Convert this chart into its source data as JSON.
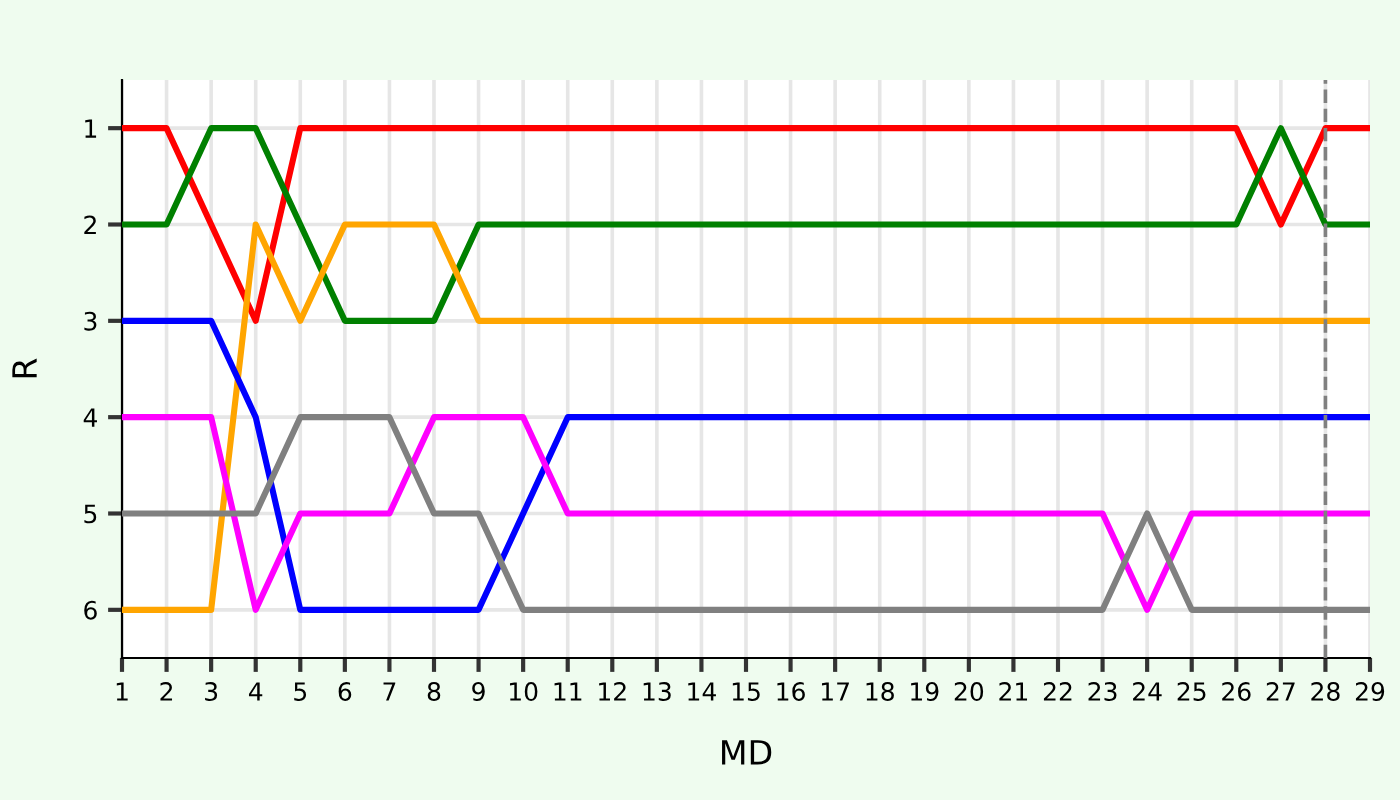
{
  "chart_data": {
    "type": "line",
    "xlabel": "MD",
    "ylabel": "R",
    "x": [
      1,
      2,
      3,
      4,
      5,
      6,
      7,
      8,
      9,
      10,
      11,
      12,
      13,
      14,
      15,
      16,
      17,
      18,
      19,
      20,
      21,
      22,
      23,
      24,
      25,
      26,
      27,
      28,
      29
    ],
    "series": [
      {
        "color": "#ff0000",
        "values": [
          1,
          1,
          2,
          3,
          1,
          1,
          1,
          1,
          1,
          1,
          1,
          1,
          1,
          1,
          1,
          1,
          1,
          1,
          1,
          1,
          1,
          1,
          1,
          1,
          1,
          1,
          2,
          1,
          1
        ]
      },
      {
        "color": "#008000",
        "values": [
          2,
          2,
          1,
          1,
          2,
          3,
          3,
          3,
          2,
          2,
          2,
          2,
          2,
          2,
          2,
          2,
          2,
          2,
          2,
          2,
          2,
          2,
          2,
          2,
          2,
          2,
          1,
          2,
          2
        ]
      },
      {
        "color": "#ffa500",
        "values": [
          6,
          6,
          6,
          2,
          3,
          2,
          2,
          2,
          3,
          3,
          3,
          3,
          3,
          3,
          3,
          3,
          3,
          3,
          3,
          3,
          3,
          3,
          3,
          3,
          3,
          3,
          3,
          3,
          3
        ]
      },
      {
        "color": "#0000ff",
        "values": [
          3,
          3,
          3,
          4,
          6,
          6,
          6,
          6,
          6,
          5,
          4,
          4,
          4,
          4,
          4,
          4,
          4,
          4,
          4,
          4,
          4,
          4,
          4,
          4,
          4,
          4,
          4,
          4,
          4
        ]
      },
      {
        "color": "#ff00ff",
        "values": [
          4,
          4,
          4,
          6,
          5,
          5,
          5,
          4,
          4,
          4,
          5,
          5,
          5,
          5,
          5,
          5,
          5,
          5,
          5,
          5,
          5,
          5,
          5,
          6,
          5,
          5,
          5,
          5,
          5
        ]
      },
      {
        "color": "#808080",
        "values": [
          5,
          5,
          5,
          5,
          4,
          4,
          4,
          5,
          5,
          6,
          6,
          6,
          6,
          6,
          6,
          6,
          6,
          6,
          6,
          6,
          6,
          6,
          6,
          5,
          6,
          6,
          6,
          6,
          6
        ]
      }
    ],
    "xlim": [
      1,
      29
    ],
    "xticks": [
      1,
      2,
      3,
      4,
      5,
      6,
      7,
      8,
      9,
      10,
      11,
      12,
      13,
      14,
      15,
      16,
      17,
      18,
      19,
      20,
      21,
      22,
      23,
      24,
      25,
      26,
      27,
      28,
      29
    ],
    "ylim": [
      6.5,
      0.5
    ],
    "yticks": [
      1,
      2,
      3,
      4,
      5,
      6
    ],
    "ref_lines": [
      {
        "axis": "x",
        "value": 28,
        "color": "#808080",
        "line_style": "dashed"
      }
    ],
    "grid": true,
    "marker": "none",
    "line_style": "solid",
    "legend": false
  }
}
